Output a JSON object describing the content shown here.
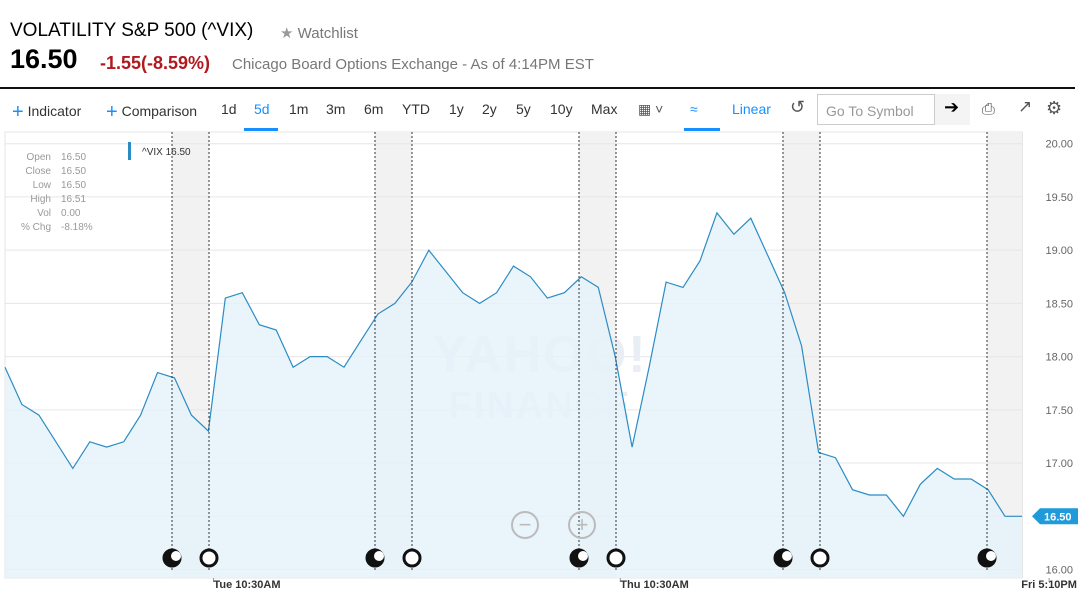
{
  "header": {
    "title": "VOLATILITY S&P 500 (^VIX)",
    "watchlist": "Watchlist",
    "price": "16.50",
    "change": "-1.55",
    "change_percent": "(-8.59%)",
    "exchange": "Chicago Board Options Exchange - As of 4:14PM EST"
  },
  "toolbar": {
    "indicator": "Indicator",
    "comparison": "Comparison",
    "ranges": [
      "1d",
      "5d",
      "1m",
      "3m",
      "6m",
      "YTD",
      "1y",
      "2y",
      "5y",
      "10y",
      "Max"
    ],
    "scale": "Linear",
    "symbol_placeholder": "Go To Symbol"
  },
  "ohlc": [
    {
      "label": "Open",
      "value": "16.50"
    },
    {
      "label": "Close",
      "value": "16.50"
    },
    {
      "label": "Low",
      "value": "16.50"
    },
    {
      "label": "High",
      "value": "16.51"
    },
    {
      "label": "Vol",
      "value": "0.00"
    },
    {
      "label": "% Chg",
      "value": "-8.18%"
    }
  ],
  "watermark": [
    "YAHOO!",
    "FINANCE"
  ],
  "chart_data": {
    "type": "line",
    "legend": "^VIX 16.50",
    "last_price": "16.50",
    "color": "#2b8cc4",
    "values": [
      17.9,
      17.55,
      17.45,
      17.2,
      16.95,
      17.2,
      17.15,
      17.2,
      17.45,
      17.85,
      17.8,
      17.45,
      17.3,
      18.55,
      18.6,
      18.3,
      18.25,
      17.9,
      18.0,
      18.0,
      17.9,
      18.15,
      18.4,
      18.5,
      18.7,
      19.0,
      18.8,
      18.6,
      18.5,
      18.6,
      18.85,
      18.75,
      18.55,
      18.6,
      18.75,
      18.65,
      18.0,
      17.15,
      17.9,
      18.7,
      18.65,
      18.9,
      19.35,
      19.15,
      19.3,
      18.95,
      18.6,
      18.1,
      17.1,
      17.05,
      16.75,
      16.7,
      16.7,
      16.5,
      16.8,
      16.95,
      16.85,
      16.85,
      16.75,
      16.5,
      16.5
    ],
    "xlim": [
      0,
      60
    ],
    "xticks": [
      {
        "value": 12.3,
        "label": "Tue 10:30AM"
      },
      {
        "value": 36.3,
        "label": "Thu 10:30AM"
      },
      {
        "value": 61.6,
        "label": "Fri 5:10PM"
      }
    ],
    "ylim": [
      15.92,
      20.11
    ],
    "yticks": [
      {
        "value": 16,
        "label": "16.00"
      },
      {
        "value": 16.5,
        "label": "16.50"
      },
      {
        "value": 17,
        "label": "17.00"
      },
      {
        "value": 17.5,
        "label": "17.50"
      },
      {
        "value": 18,
        "label": "18.00"
      },
      {
        "value": 18.5,
        "label": "18.50"
      },
      {
        "value": 19,
        "label": "19.00"
      },
      {
        "value": 19.5,
        "label": "19.50"
      },
      {
        "value": 20,
        "label": "20.00"
      }
    ],
    "grid": true
  }
}
